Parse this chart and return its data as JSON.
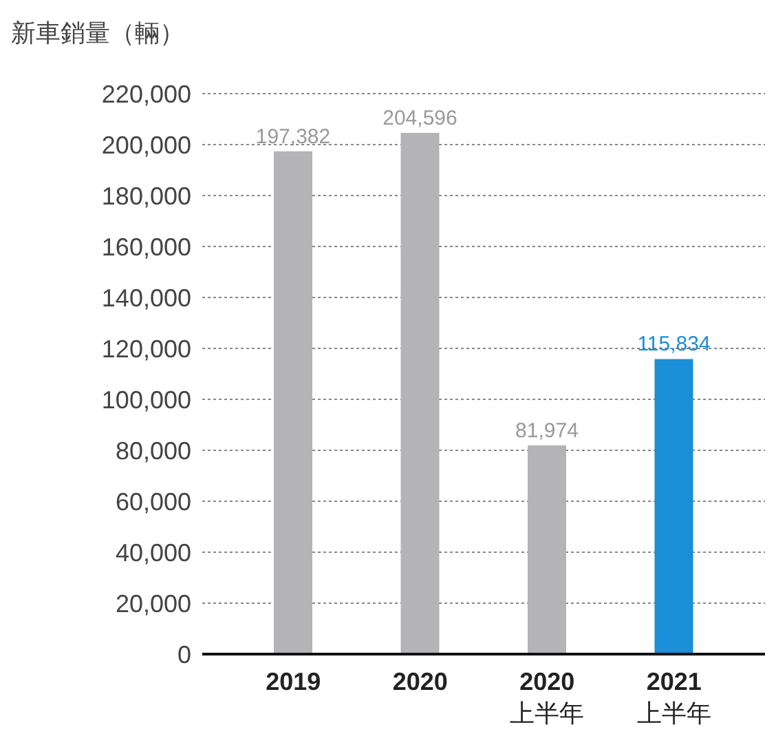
{
  "chart_data": {
    "type": "bar",
    "ylabel": "新車銷量（輛）",
    "categories": [
      "2019",
      "2020",
      "2020\n上半年",
      "2021\n上半年"
    ],
    "values": [
      197382,
      204596,
      81974,
      115834
    ],
    "value_labels": [
      "197,382",
      "204,596",
      "81,974",
      "115,834"
    ],
    "colors": [
      "#b4b4b6",
      "#b4b4b6",
      "#b4b4b6",
      "#1a8ed6"
    ],
    "ylim": [
      0,
      220000
    ],
    "yticks": [
      0,
      {
        "value": 20000,
        "label": "20,000"
      },
      {
        "value": 40000,
        "label": "40,000"
      },
      {
        "value": 60000,
        "label": "60,000"
      },
      {
        "value": 80000,
        "label": "80,000"
      },
      {
        "value": 100000,
        "label": "100,000"
      },
      {
        "value": 120000,
        "label": "120,000"
      },
      {
        "value": 140000,
        "label": "140,000"
      },
      {
        "value": 160000,
        "label": "160,000"
      },
      {
        "value": 180000,
        "label": "180,000"
      },
      {
        "value": 200000,
        "label": "200,000"
      },
      {
        "value": 220000,
        "label": "220,000"
      }
    ],
    "grid": "y"
  }
}
